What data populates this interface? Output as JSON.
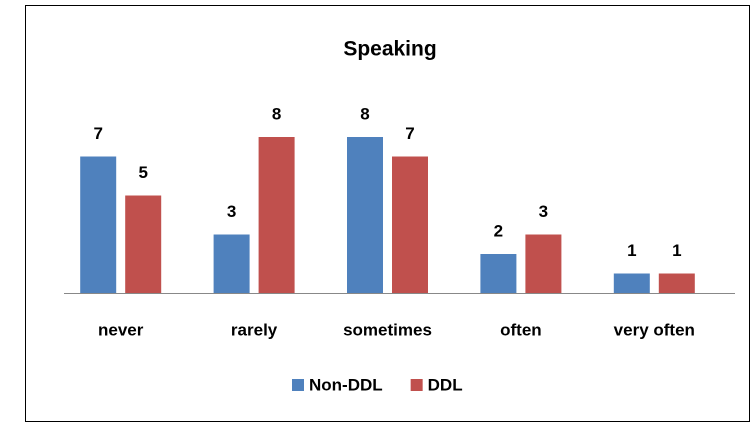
{
  "chart_data": {
    "type": "bar",
    "title": "Speaking",
    "categories": [
      "never",
      "rarely",
      "sometimes",
      "often",
      "very often"
    ],
    "series": [
      {
        "name": "Non-DDL",
        "color": "#4f81bd",
        "values": [
          7,
          3,
          8,
          2,
          1
        ]
      },
      {
        "name": "DDL",
        "color": "#c0504d",
        "values": [
          5,
          8,
          7,
          3,
          1
        ]
      }
    ],
    "legend": "bottom"
  }
}
